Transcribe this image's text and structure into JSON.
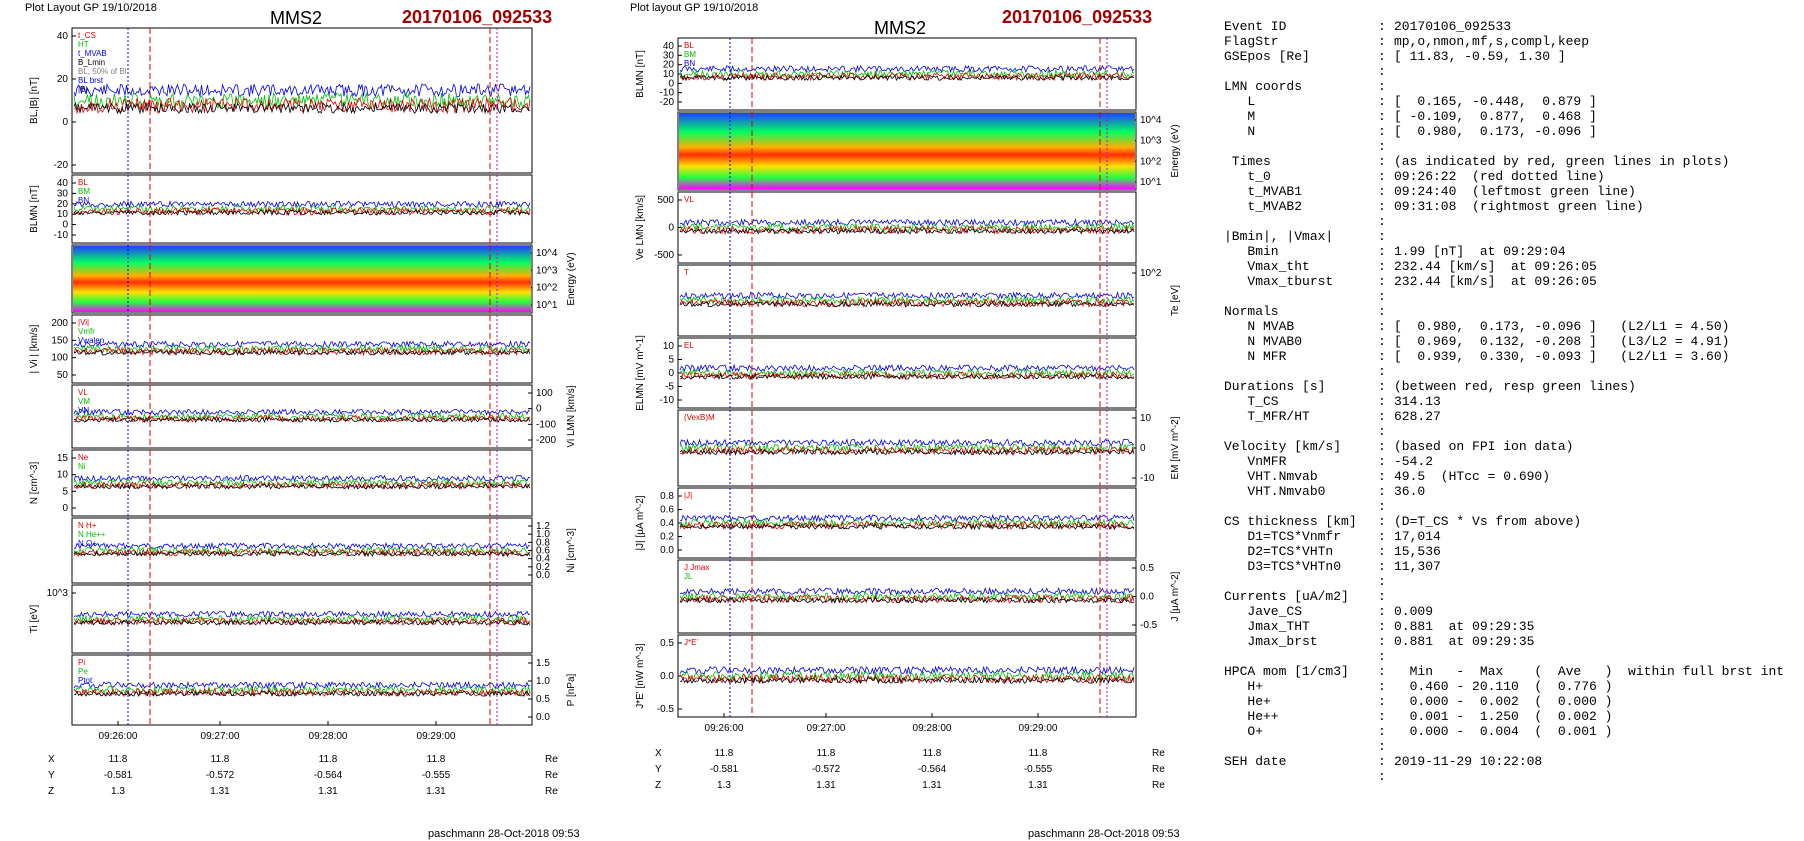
{
  "colors": {
    "red": "#e00000",
    "blue": "#0000ee",
    "green": "#00c000",
    "black": "#000000",
    "gray": "#808080",
    "event": "#a00000",
    "magenta": "#d000d0"
  },
  "left": {
    "header": {
      "plot_label": "Plot Layout GP 19/10/2018",
      "title": "MMS2",
      "event": "20170106_092533"
    },
    "footer": "paschmann 28-Oct-2018 09:53",
    "panels": [
      {
        "ylabel": "BL,|B| [nT]",
        "legend": [
          "t_CS",
          "HT",
          "t_MVAB",
          "B_Lmin",
          "BL, 50% of Bl",
          "BL brst",
          "|B|"
        ],
        "ticks_left": [
          "40",
          "20",
          "0",
          "-20"
        ]
      },
      {
        "ylabel": "BLMN [nT]",
        "legend": [
          "BL",
          "BM",
          "BN"
        ],
        "ticks_left": [
          "40",
          "30",
          "20",
          "10",
          "0",
          "-10"
        ]
      },
      {
        "ylabel": "Energy (eV)",
        "ticks_right": [
          "10^4",
          "10^3",
          "10^2",
          "10^1"
        ]
      },
      {
        "ylabel": "| Vi | [km/s]",
        "legend": [
          "|Vi|",
          "Vmfr",
          "Vwalen"
        ],
        "ticks_left": [
          "200",
          "150",
          "100",
          "50"
        ]
      },
      {
        "ylabel": "Vi LMN [km/s]",
        "legend": [
          "VL",
          "VM",
          "VN"
        ],
        "ticks_right": [
          "100",
          "0",
          "-100",
          "-200"
        ]
      },
      {
        "ylabel": "N [cm^-3]",
        "legend": [
          "Ne",
          "Ni"
        ],
        "ticks_left": [
          "15",
          "10",
          "5",
          "0"
        ]
      },
      {
        "ylabel": "Ni [cm^-3]",
        "legend": [
          "N H+",
          "N He++",
          "N O+"
        ],
        "ticks_right": [
          "1.2",
          "1.0",
          "0.8",
          "0.6",
          "0.4",
          "0.2",
          "0.0"
        ]
      },
      {
        "ylabel": "Ti [eV]",
        "ticks_left": [
          "10^3"
        ]
      },
      {
        "ylabel": "P [nPa]",
        "legend": [
          "Pi",
          "Pe",
          "Ptot"
        ],
        "ticks_right": [
          "1.5",
          "1.0",
          "0.5",
          "0.0"
        ]
      }
    ],
    "time_ticks": [
      "09:26:00",
      "09:27:00",
      "09:28:00",
      "09:29:00"
    ],
    "coords": {
      "rows": [
        {
          "label": "X",
          "values": [
            "11.8",
            "11.8",
            "11.8",
            "11.8"
          ],
          "unit": "Re"
        },
        {
          "label": "Y",
          "values": [
            "-0.581",
            "-0.572",
            "-0.564",
            "-0.555"
          ],
          "unit": "Re"
        },
        {
          "label": "Z",
          "values": [
            "1.3",
            "1.31",
            "1.31",
            "1.31"
          ],
          "unit": "Re"
        }
      ]
    }
  },
  "right": {
    "header": {
      "plot_label": "Plot layout GP 19/10/2018",
      "title": "MMS2",
      "event": "20170106_092533"
    },
    "footer": "paschmann 28-Oct-2018 09:53",
    "panels": [
      {
        "ylabel": "BLMN [nT]",
        "legend": [
          "BL",
          "BM",
          "BN"
        ],
        "ticks_left": [
          "40",
          "30",
          "20",
          "10",
          "0",
          "-10",
          "-20"
        ]
      },
      {
        "ylabel": "Energy (eV)",
        "ticks_right": [
          "10^4",
          "10^3",
          "10^2",
          "10^1"
        ]
      },
      {
        "ylabel": "Ve LMN [km/s]",
        "legend": [
          "VL"
        ],
        "ticks_left": [
          "500",
          "0",
          "-500"
        ]
      },
      {
        "ylabel": "Te [eV]",
        "legend": [
          "T"
        ],
        "ticks_right": [
          "10^2"
        ]
      },
      {
        "ylabel": "ELMN [mV m^-1]",
        "legend": [
          "EL"
        ],
        "ticks_left": [
          "10",
          "5",
          "0",
          "-5",
          "-10"
        ]
      },
      {
        "ylabel": "EM [mV m^-2]",
        "legend": [
          "(VexB)M"
        ],
        "ticks_right": [
          "10",
          "0",
          "-10"
        ]
      },
      {
        "ylabel": "|J| [µA m^-2]",
        "legend": [
          "|J|"
        ],
        "ticks_left": [
          "0.8",
          "0.6",
          "0.4",
          "0.2",
          "0.0"
        ]
      },
      {
        "ylabel": "J [µA m^-2]",
        "legend": [
          "J Jmax",
          "JL"
        ],
        "ticks_right": [
          "0.5",
          "0.0",
          "-0.5"
        ]
      },
      {
        "ylabel": "J*E' [nW m^-3]",
        "legend": [
          "J*E'"
        ],
        "ticks_left": [
          "0.5",
          "0.0",
          "-0.5"
        ]
      }
    ],
    "time_ticks": [
      "09:26:00",
      "09:27:00",
      "09:28:00",
      "09:29:00"
    ],
    "coords": {
      "rows": [
        {
          "label": "X",
          "values": [
            "11.8",
            "11.8",
            "11.8",
            "11.8"
          ],
          "unit": "Re"
        },
        {
          "label": "Y",
          "values": [
            "-0.581",
            "-0.572",
            "-0.564",
            "-0.555"
          ],
          "unit": "Re"
        },
        {
          "label": "Z",
          "values": [
            "1.3",
            "1.31",
            "1.31",
            "1.31"
          ],
          "unit": "Re"
        }
      ]
    }
  },
  "table": {
    "rows": [
      {
        "label": "Event ID",
        "value": "20170106_092533"
      },
      {
        "label": "FlagStr",
        "value": "mp,o,nmon,mf,s,compl,keep"
      },
      {
        "label": "GSEpos [Re]",
        "value": "[ 11.83, -0.59, 1.30 ]"
      },
      {
        "label": "",
        "value": ""
      },
      {
        "label": "LMN coords",
        "value": ""
      },
      {
        "label": "   L",
        "value": "[  0.165, -0.448,  0.879 ]"
      },
      {
        "label": "   M",
        "value": "[ -0.109,  0.877,  0.468 ]"
      },
      {
        "label": "   N",
        "value": "[  0.980,  0.173, -0.096 ]"
      },
      {
        "label": "",
        "value": ""
      },
      {
        "label": " Times",
        "value": "(as indicated by red, green lines in plots)"
      },
      {
        "label": "   t_0",
        "value": "09:26:22  (red dotted line)"
      },
      {
        "label": "   t_MVAB1",
        "value": "09:24:40  (leftmost green line)"
      },
      {
        "label": "   t_MVAB2",
        "value": "09:31:08  (rightmost green line)"
      },
      {
        "label": "",
        "value": ""
      },
      {
        "label": "|Bmin|, |Vmax|",
        "value": ""
      },
      {
        "label": "   Bmin",
        "value": "1.99 [nT]  at 09:29:04"
      },
      {
        "label": "   Vmax_tht",
        "value": "232.44 [km/s]  at 09:26:05"
      },
      {
        "label": "   Vmax_tburst",
        "value": "232.44 [km/s]  at 09:26:05"
      },
      {
        "label": "",
        "value": ""
      },
      {
        "label": "Normals",
        "value": ""
      },
      {
        "label": "   N MVAB",
        "value": "[  0.980,  0.173, -0.096 ]   (L2/L1 = 4.50)"
      },
      {
        "label": "   N MVAB0",
        "value": "[  0.969,  0.132, -0.208 ]   (L3/L2 = 4.91)"
      },
      {
        "label": "   N MFR",
        "value": "[  0.939,  0.330, -0.093 ]   (L2/L1 = 3.60)"
      },
      {
        "label": "",
        "value": ""
      },
      {
        "label": "Durations [s]",
        "value": "(between red, resp green lines)"
      },
      {
        "label": "   T_CS",
        "value": "314.13"
      },
      {
        "label": "   T_MFR/HT",
        "value": "628.27"
      },
      {
        "label": "",
        "value": ""
      },
      {
        "label": "Velocity [km/s]",
        "value": "(based on FPI ion data)"
      },
      {
        "label": "   VnMFR",
        "value": "-54.2"
      },
      {
        "label": "   VHT.Nmvab",
        "value": "49.5  (HTcc = 0.690)"
      },
      {
        "label": "   VHT.Nmvab0",
        "value": "36.0"
      },
      {
        "label": "",
        "value": ""
      },
      {
        "label": "CS thickness [km]",
        "value": "(D=T_CS * Vs from above)"
      },
      {
        "label": "   D1=TCS*Vnmfr",
        "value": "17,014"
      },
      {
        "label": "   D2=TCS*VHTn",
        "value": "15,536"
      },
      {
        "label": "   D3=TCS*VHTn0",
        "value": "11,307"
      },
      {
        "label": "",
        "value": ""
      },
      {
        "label": "Currents [uA/m2]",
        "value": ""
      },
      {
        "label": "   Jave_CS",
        "value": "0.009"
      },
      {
        "label": "   Jmax_THT",
        "value": "0.881  at 09:29:35"
      },
      {
        "label": "   Jmax_brst",
        "value": "0.881  at 09:29:35"
      },
      {
        "label": "",
        "value": ""
      },
      {
        "label": "HPCA mom [1/cm3]",
        "value": "  Min   -  Max    (  Ave   )  within full brst int"
      },
      {
        "label": "   H+",
        "value": "  0.460 - 20.110  (  0.776 )"
      },
      {
        "label": "   He+",
        "value": "  0.000 -  0.002  (  0.000 )"
      },
      {
        "label": "   He++",
        "value": "  0.001 -  1.250  (  0.002 )"
      },
      {
        "label": "   O+",
        "value": "  0.000 -  0.004  (  0.001 )"
      },
      {
        "label": "",
        "value": ""
      },
      {
        "label": "SEH date",
        "value": "2019-11-29 10:22:08"
      },
      {
        "label": "",
        "value": ""
      }
    ]
  }
}
